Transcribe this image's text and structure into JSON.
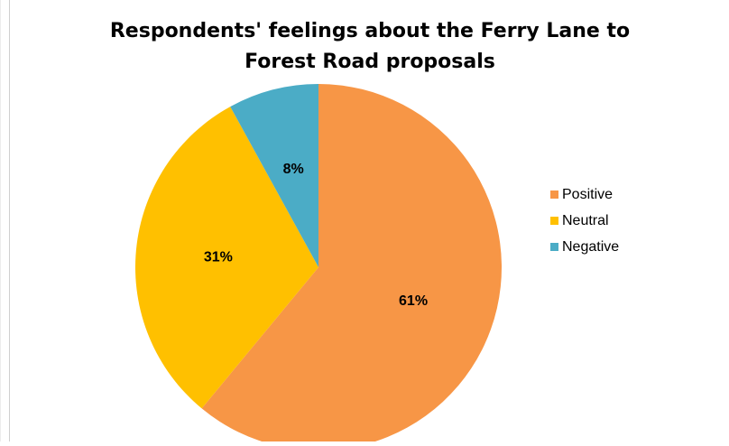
{
  "chart_data": {
    "type": "pie",
    "title": "Respondents' feelings about the Ferry Lane to\nForest Road proposals",
    "categories": [
      "Positive",
      "Neutral",
      "Negative"
    ],
    "values": [
      61,
      31,
      8
    ],
    "data_labels": [
      "61%",
      "31%",
      "8%"
    ],
    "colors": [
      "#F79646",
      "#FFC000",
      "#4BACC6"
    ],
    "legend": "right"
  }
}
